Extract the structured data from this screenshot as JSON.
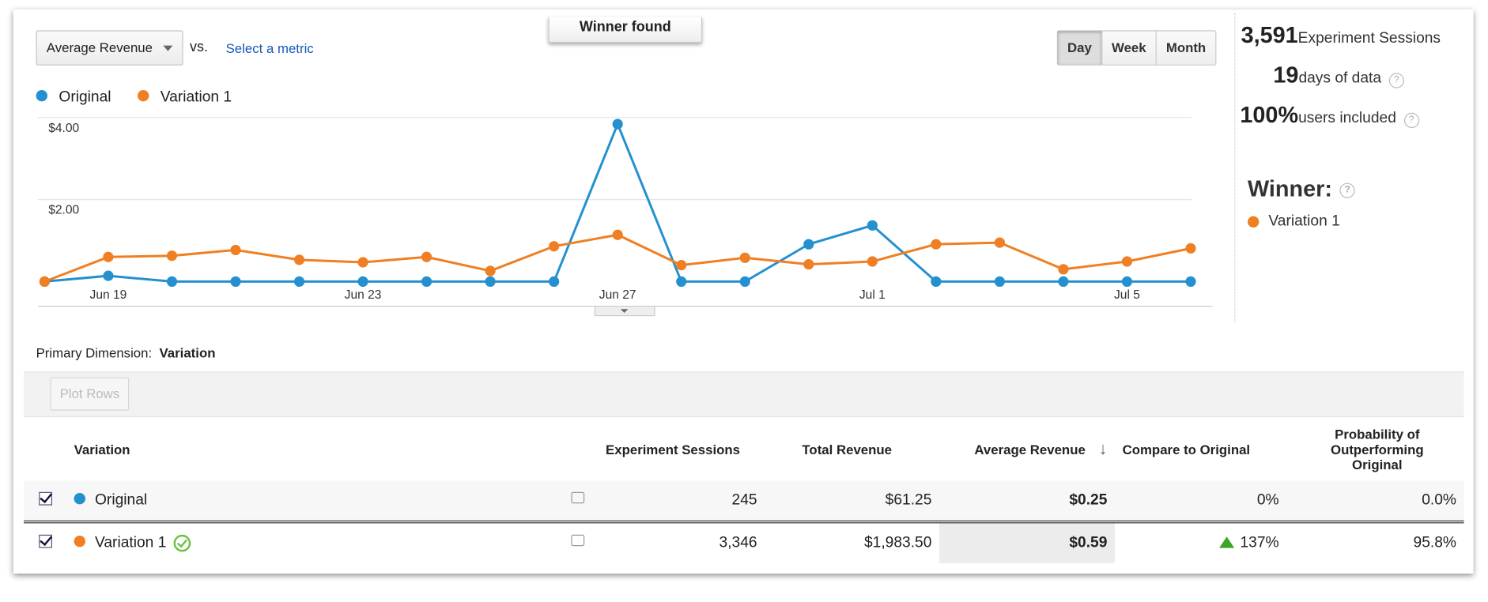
{
  "controls": {
    "metric": "Average Revenue",
    "vs": "vs.",
    "select_metric": "Select a metric",
    "banner": "Winner found",
    "buttons": [
      "Day",
      "Week",
      "Month"
    ]
  },
  "stats": {
    "sessions": "3,591",
    "sessions_label": "Experiment Sessions",
    "days": "19",
    "days_label": "days of data",
    "users": "100%",
    "users_label": "users included",
    "winner_title": "Winner:",
    "winner": "Variation 1"
  },
  "chart_data": {
    "type": "line",
    "categories": [
      null,
      "Jun 19",
      null,
      null,
      null,
      "Jun 23",
      null,
      null,
      null,
      "Jun 27",
      null,
      null,
      null,
      "Jul 1",
      null,
      null,
      null,
      "Jul 5",
      null
    ],
    "series": [
      {
        "name": "Original",
        "color": "#2590cf",
        "values": [
          0,
          0.14,
          0,
          0,
          0,
          0,
          0,
          0,
          0,
          3.84,
          0,
          0,
          0.91,
          1.37,
          0,
          0,
          0,
          0,
          0
        ]
      },
      {
        "name": "Variation 1",
        "color": "#f07f23",
        "values": [
          0,
          0.6,
          0.63,
          0.77,
          0.53,
          0.47,
          0.6,
          0.26,
          0.86,
          1.14,
          0.4,
          0.58,
          0.42,
          0.49,
          0.91,
          0.95,
          0.3,
          0.49,
          0.81
        ]
      }
    ],
    "ylim": [
      0,
      4
    ],
    "yticks": [
      {
        "value": 4,
        "label": "$4.00"
      },
      {
        "value": 2,
        "label": "$2.00"
      }
    ],
    "grid": true
  },
  "dimension": {
    "label": "Primary Dimension:",
    "value": "Variation",
    "plot_rows": "Plot Rows"
  },
  "table": {
    "headers": [
      "Variation",
      "Experiment Sessions",
      "Total Revenue",
      "Average Revenue",
      "Compare to Original",
      "Probability of Outperforming Original"
    ],
    "rows": [
      [
        "Original",
        "245",
        "$61.25",
        "$0.25",
        "0%",
        "0.0%"
      ],
      [
        "Variation 1",
        "3,346",
        "$1,983.50",
        "$0.59",
        "137%",
        "95.8%"
      ]
    ]
  }
}
